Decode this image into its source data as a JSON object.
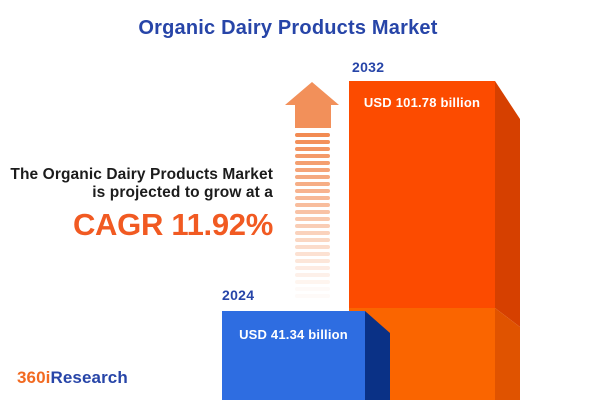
{
  "title": "Organic Dairy Products Market",
  "chart_data": {
    "type": "bar",
    "categories": [
      "2024",
      "2032"
    ],
    "values": [
      41.34,
      101.78
    ],
    "unit": "USD billion",
    "value_labels": [
      "USD 41.34 billion",
      "USD 101.78 billion"
    ],
    "cagr_percent": 11.92,
    "title": "Organic Dairy Products Market",
    "legend": "none",
    "orientation": "vertical-3d",
    "bar_colors": {
      "2024": "#2E6DE1",
      "2032": "#FC4B00"
    }
  },
  "bars": {
    "b2024": {
      "year": "2024",
      "value_label": "USD 41.34 billion"
    },
    "b2032": {
      "year": "2032",
      "value_label": "USD 101.78 billion"
    }
  },
  "annotation": {
    "line1": "The Organic Dairy Products Market",
    "line2": "is projected to grow at a",
    "cagr": "CAGR 11.92%"
  },
  "logo": {
    "part1": "360i",
    "part2": "Research"
  },
  "colors": {
    "title_blue": "#2745A8",
    "accent_orange": "#F15A22",
    "text_dark": "#1C1C1C",
    "bar_blue_front": "#2E6DE1",
    "bar_blue_side": "#0A3186",
    "bar_orange_front_top": "#FC4B00",
    "bar_orange_front_bottom": "#FA6500",
    "bar_orange_side_top": "#D64000",
    "bar_orange_side_bottom": "#E05300",
    "growth_arrow": "#F28B53"
  }
}
